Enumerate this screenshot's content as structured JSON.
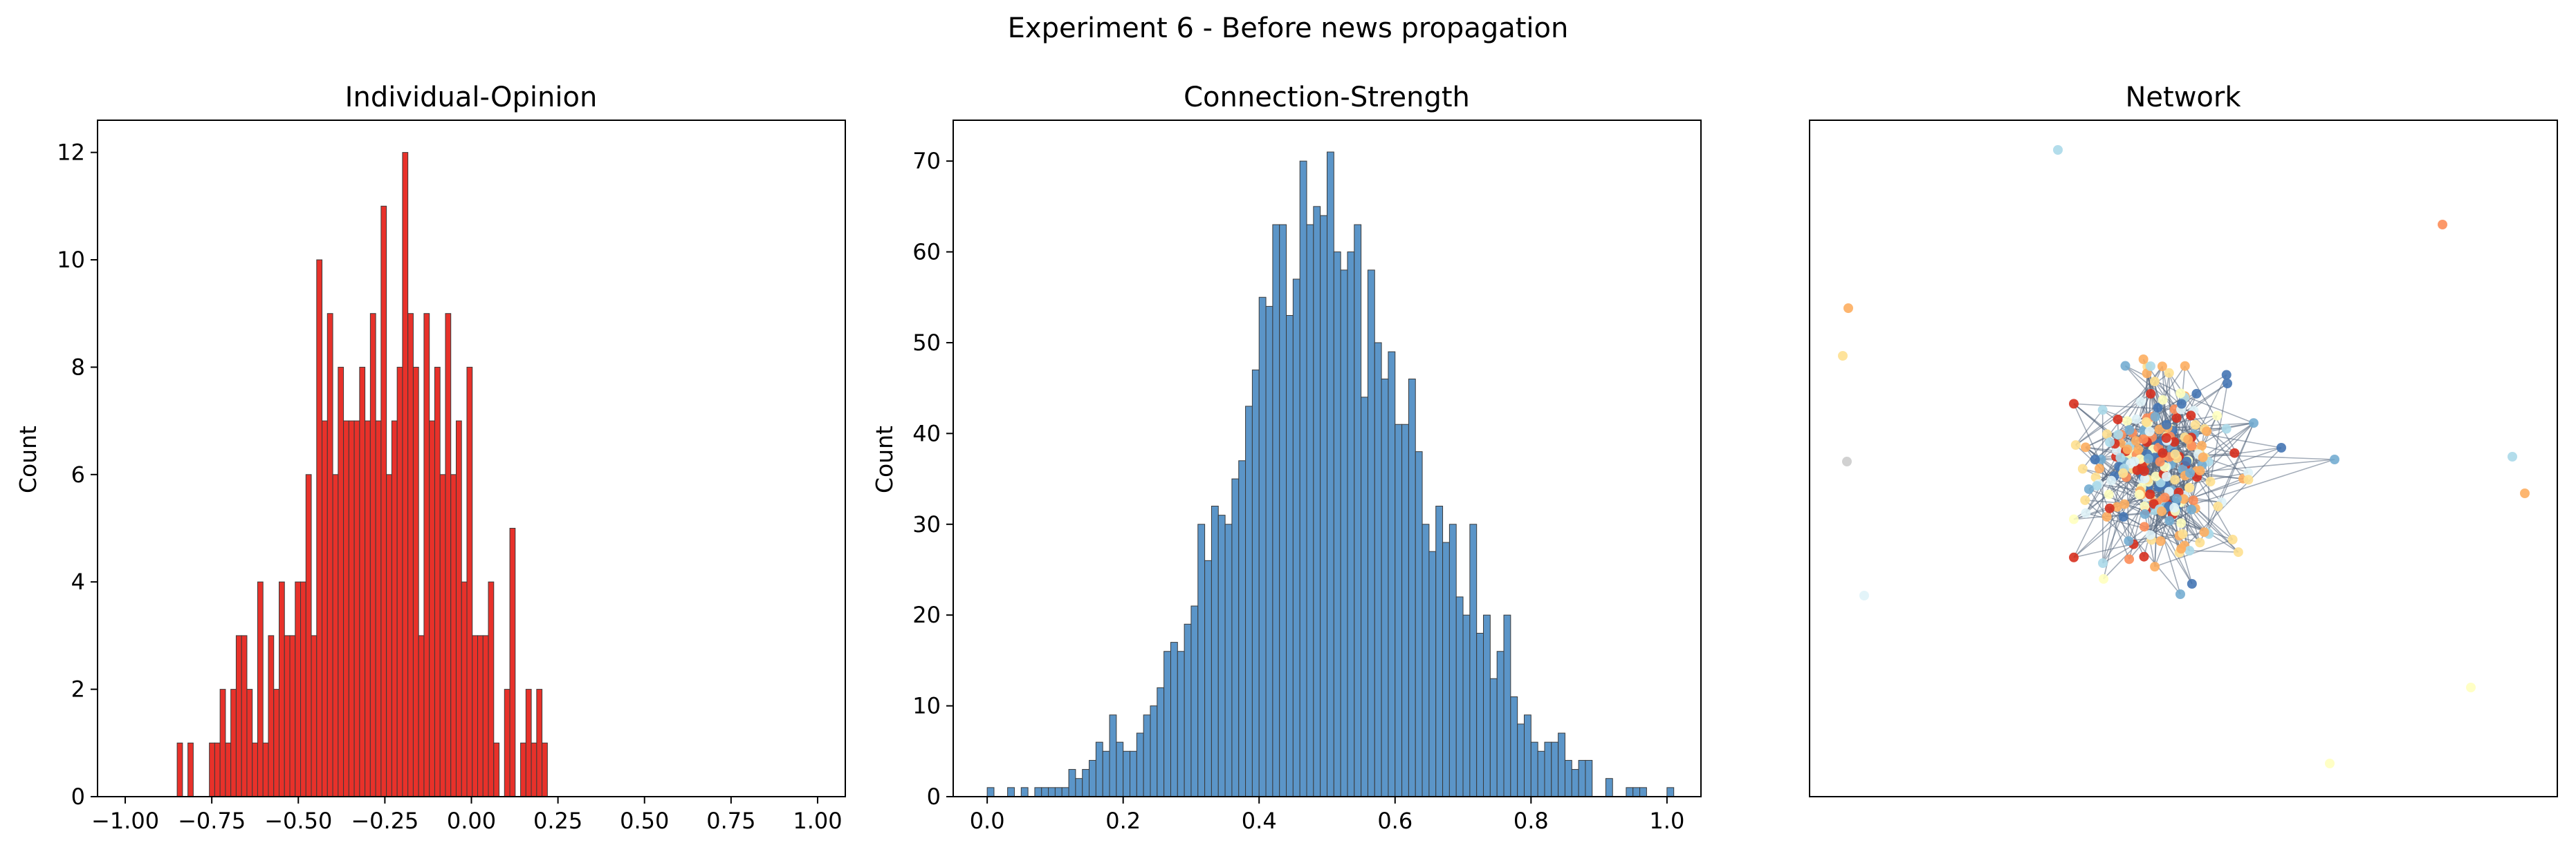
{
  "figure": {
    "suptitle": "Experiment 6 - Before news propagation"
  },
  "chart_data": [
    {
      "type": "bar",
      "title": "Individual-Opinion",
      "xlabel": "",
      "ylabel": "Count",
      "xlim": [
        -1.08,
        1.08
      ],
      "ylim": [
        0,
        12.6
      ],
      "xticks": [
        -1.0,
        -0.75,
        -0.5,
        -0.25,
        0.0,
        0.25,
        0.5,
        0.75,
        1.0
      ],
      "xtick_labels": [
        "−1.00",
        "−0.75",
        "−0.50",
        "−0.25",
        "0.00",
        "0.25",
        "0.50",
        "0.75",
        "1.00"
      ],
      "yticks": [
        0,
        2,
        4,
        6,
        8,
        10,
        12
      ],
      "ytick_labels": [
        "0",
        "2",
        "4",
        "6",
        "8",
        "10",
        "12"
      ],
      "bin_start": -0.85,
      "bin_width": 0.0155,
      "values": [
        1,
        0,
        1,
        0,
        0,
        0,
        1,
        1,
        2,
        1,
        2,
        3,
        3,
        2,
        1,
        4,
        1,
        3,
        2,
        4,
        3,
        3,
        4,
        4,
        6,
        3,
        10,
        7,
        9,
        6,
        8,
        7,
        7,
        7,
        8,
        7,
        9,
        7,
        11,
        6,
        7,
        8,
        12,
        9,
        8,
        3,
        9,
        7,
        8,
        6,
        9,
        6,
        7,
        4,
        8,
        3,
        3,
        3,
        4,
        1,
        0,
        2,
        5,
        0,
        1,
        2,
        1,
        2,
        1
      ],
      "bar_color": "#e8312a"
    },
    {
      "type": "bar",
      "title": "Connection-Strength",
      "xlabel": "",
      "ylabel": "Count",
      "xlim": [
        -0.05,
        1.05
      ],
      "ylim": [
        0,
        74.5
      ],
      "xticks": [
        0.0,
        0.2,
        0.4,
        0.6,
        0.8,
        1.0
      ],
      "xtick_labels": [
        "0.0",
        "0.2",
        "0.4",
        "0.6",
        "0.8",
        "1.0"
      ],
      "yticks": [
        0,
        10,
        20,
        30,
        40,
        50,
        60,
        70
      ],
      "ytick_labels": [
        "0",
        "10",
        "20",
        "30",
        "40",
        "50",
        "60",
        "70"
      ],
      "bin_start": 0.0,
      "bin_width": 0.01,
      "values": [
        1,
        0,
        0,
        1,
        0,
        1,
        0,
        1,
        1,
        1,
        1,
        1,
        3,
        2,
        3,
        4,
        6,
        5,
        9,
        6,
        5,
        5,
        7,
        9,
        10,
        12,
        16,
        17,
        16,
        19,
        21,
        30,
        26,
        32,
        31,
        30,
        35,
        37,
        43,
        47,
        55,
        54,
        63,
        63,
        53,
        57,
        70,
        63,
        65,
        64,
        71,
        60,
        58,
        60,
        63,
        44,
        58,
        50,
        46,
        49,
        41,
        41,
        46,
        38,
        30,
        27,
        32,
        28,
        30,
        22,
        20,
        30,
        18,
        20,
        13,
        16,
        20,
        11,
        8,
        9,
        6,
        5,
        6,
        6,
        7,
        4,
        3,
        4,
        4,
        0,
        0,
        2,
        0,
        0,
        1,
        1,
        1,
        0,
        0,
        0,
        1
      ],
      "bar_color": "#5b95c8"
    },
    {
      "type": "scatter",
      "title": "Network",
      "xlabel": "",
      "ylabel": ""
    }
  ],
  "network": {
    "palette": [
      "#d7301f",
      "#fc8d59",
      "#fdae61",
      "#fee090",
      "#ffffbf",
      "#e0f3f8",
      "#abd9e9",
      "#74add1",
      "#4575b4",
      "#cccccc"
    ],
    "edge_color": "#5a6a80"
  }
}
